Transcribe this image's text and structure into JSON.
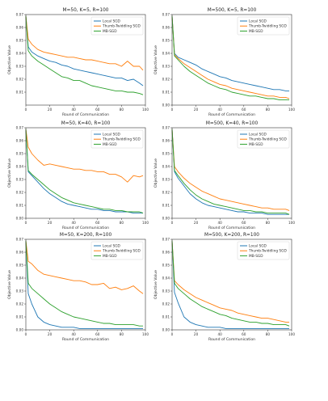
{
  "colors": {
    "Local SGD": "#1f77b4",
    "Thumb-Twiddling SGD": "#ff7f0e",
    "MB-SGD": "#2ca02c"
  },
  "chart_data": [
    {
      "type": "line",
      "title": "M=50, K=5, R=100",
      "xlabel": "Round of Communication",
      "ylabel": "Objective Value",
      "xlim": [
        0,
        100
      ],
      "ylim": [
        0,
        0.07
      ],
      "xticks": [
        "0",
        "20",
        "40",
        "60",
        "80",
        "100"
      ],
      "yticks": [
        "0.01",
        "0.02",
        "0.03",
        "0.04",
        "0.05",
        "0.06",
        "0.07"
      ],
      "legend": "top-right",
      "series": [
        {
          "name": "Local SGD",
          "x": [
            0,
            2,
            5,
            10,
            15,
            20,
            25,
            30,
            35,
            40,
            45,
            50,
            55,
            60,
            65,
            70,
            75,
            80,
            85,
            90,
            95,
            98
          ],
          "values": [
            0.069,
            0.045,
            0.041,
            0.038,
            0.036,
            0.034,
            0.033,
            0.031,
            0.03,
            0.028,
            0.027,
            0.026,
            0.025,
            0.024,
            0.023,
            0.022,
            0.021,
            0.021,
            0.019,
            0.02,
            0.017,
            0.015
          ]
        },
        {
          "name": "Thumb-Twiddling SGD",
          "x": [
            0,
            2,
            5,
            10,
            15,
            20,
            25,
            30,
            35,
            40,
            45,
            50,
            55,
            60,
            65,
            70,
            75,
            80,
            85,
            90,
            95,
            98
          ],
          "values": [
            0.069,
            0.051,
            0.047,
            0.043,
            0.041,
            0.04,
            0.039,
            0.038,
            0.037,
            0.037,
            0.036,
            0.035,
            0.035,
            0.034,
            0.033,
            0.032,
            0.032,
            0.03,
            0.034,
            0.03,
            0.03,
            0.027
          ]
        },
        {
          "name": "MB-SGD",
          "x": [
            0,
            2,
            5,
            10,
            15,
            20,
            25,
            30,
            35,
            40,
            45,
            50,
            55,
            60,
            65,
            70,
            75,
            80,
            85,
            90,
            95,
            98
          ],
          "values": [
            0.069,
            0.042,
            0.038,
            0.034,
            0.031,
            0.028,
            0.025,
            0.022,
            0.021,
            0.019,
            0.019,
            0.017,
            0.015,
            0.014,
            0.013,
            0.012,
            0.011,
            0.011,
            0.01,
            0.01,
            0.009,
            0.008
          ]
        }
      ]
    },
    {
      "type": "line",
      "title": "M=500, K=5, R=100",
      "xlabel": "Round of Communication",
      "ylabel": "Objective Value",
      "xlim": [
        0,
        100
      ],
      "ylim": [
        0,
        0.07
      ],
      "xticks": [
        "0",
        "20",
        "40",
        "60",
        "80",
        "100"
      ],
      "yticks": [
        "0.00",
        "0.01",
        "0.02",
        "0.03",
        "0.04",
        "0.05",
        "0.06",
        "0.07"
      ],
      "legend": "top-right",
      "series": [
        {
          "name": "Local SGD",
          "x": [
            0,
            2,
            5,
            10,
            15,
            20,
            25,
            30,
            35,
            40,
            45,
            50,
            55,
            60,
            65,
            70,
            75,
            80,
            85,
            90,
            95,
            98
          ],
          "values": [
            0.069,
            0.04,
            0.037,
            0.035,
            0.033,
            0.031,
            0.028,
            0.026,
            0.024,
            0.022,
            0.021,
            0.019,
            0.018,
            0.017,
            0.016,
            0.015,
            0.014,
            0.013,
            0.012,
            0.012,
            0.011,
            0.011
          ]
        },
        {
          "name": "Thumb-Twiddling SGD",
          "x": [
            0,
            2,
            5,
            10,
            15,
            20,
            25,
            30,
            35,
            40,
            45,
            50,
            55,
            60,
            65,
            70,
            75,
            80,
            85,
            90,
            95,
            98
          ],
          "values": [
            0.069,
            0.039,
            0.036,
            0.032,
            0.029,
            0.026,
            0.023,
            0.02,
            0.018,
            0.016,
            0.015,
            0.013,
            0.012,
            0.011,
            0.01,
            0.009,
            0.008,
            0.007,
            0.007,
            0.006,
            0.006,
            0.005
          ]
        },
        {
          "name": "MB-SGD",
          "x": [
            0,
            2,
            5,
            10,
            15,
            20,
            25,
            30,
            35,
            40,
            45,
            50,
            55,
            60,
            65,
            70,
            75,
            80,
            85,
            90,
            95,
            98
          ],
          "values": [
            0.069,
            0.038,
            0.035,
            0.03,
            0.026,
            0.023,
            0.02,
            0.017,
            0.015,
            0.013,
            0.012,
            0.01,
            0.009,
            0.008,
            0.007,
            0.007,
            0.006,
            0.005,
            0.005,
            0.004,
            0.004,
            0.004
          ]
        }
      ]
    },
    {
      "type": "line",
      "title": "M=50, K=40, R=100",
      "xlabel": "Round of Communication",
      "ylabel": "Objective Value",
      "xlim": [
        0,
        100
      ],
      "ylim": [
        0,
        0.07
      ],
      "xticks": [
        "0",
        "20",
        "40",
        "60",
        "80",
        "100"
      ],
      "yticks": [
        "0.00",
        "0.01",
        "0.02",
        "0.03",
        "0.04",
        "0.05",
        "0.06",
        "0.07"
      ],
      "legend": "top-right",
      "series": [
        {
          "name": "Local SGD",
          "x": [
            0,
            2,
            5,
            10,
            15,
            20,
            25,
            30,
            35,
            40,
            45,
            50,
            55,
            60,
            65,
            70,
            75,
            80,
            85,
            90,
            95,
            98
          ],
          "values": [
            0.069,
            0.036,
            0.033,
            0.028,
            0.023,
            0.019,
            0.016,
            0.013,
            0.011,
            0.01,
            0.009,
            0.008,
            0.007,
            0.007,
            0.006,
            0.006,
            0.005,
            0.005,
            0.005,
            0.004,
            0.004,
            0.004
          ]
        },
        {
          "name": "Thumb-Twiddling SGD",
          "x": [
            0,
            2,
            5,
            10,
            15,
            20,
            25,
            30,
            35,
            40,
            45,
            50,
            55,
            60,
            65,
            70,
            75,
            80,
            85,
            90,
            95,
            98
          ],
          "values": [
            0.069,
            0.055,
            0.05,
            0.045,
            0.041,
            0.042,
            0.041,
            0.04,
            0.039,
            0.038,
            0.038,
            0.037,
            0.037,
            0.036,
            0.036,
            0.034,
            0.034,
            0.032,
            0.028,
            0.033,
            0.032,
            0.033
          ]
        },
        {
          "name": "MB-SGD",
          "x": [
            0,
            2,
            5,
            10,
            15,
            20,
            25,
            30,
            35,
            40,
            45,
            50,
            55,
            60,
            65,
            70,
            75,
            80,
            85,
            90,
            95,
            98
          ],
          "values": [
            0.069,
            0.037,
            0.034,
            0.03,
            0.026,
            0.022,
            0.019,
            0.016,
            0.014,
            0.012,
            0.011,
            0.01,
            0.009,
            0.008,
            0.007,
            0.007,
            0.006,
            0.006,
            0.005,
            0.005,
            0.005,
            0.004
          ]
        }
      ]
    },
    {
      "type": "line",
      "title": "M=500, K=40, R=100",
      "xlabel": "Round of Communication",
      "ylabel": "Objective Value",
      "xlim": [
        0,
        100
      ],
      "ylim": [
        0,
        0.07
      ],
      "xticks": [
        "0",
        "20",
        "40",
        "60",
        "80",
        "100"
      ],
      "yticks": [
        "0.00",
        "0.01",
        "0.02",
        "0.03",
        "0.04",
        "0.05",
        "0.06",
        "0.07"
      ],
      "legend": "top-right",
      "series": [
        {
          "name": "Local SGD",
          "x": [
            0,
            2,
            5,
            10,
            15,
            20,
            25,
            30,
            35,
            40,
            45,
            50,
            55,
            60,
            65,
            70,
            75,
            80,
            85,
            90,
            95,
            98
          ],
          "values": [
            0.069,
            0.036,
            0.031,
            0.025,
            0.019,
            0.015,
            0.012,
            0.01,
            0.009,
            0.008,
            0.007,
            0.006,
            0.005,
            0.005,
            0.004,
            0.004,
            0.004,
            0.003,
            0.003,
            0.003,
            0.003,
            0.003
          ]
        },
        {
          "name": "Thumb-Twiddling SGD",
          "x": [
            0,
            2,
            5,
            10,
            15,
            20,
            25,
            30,
            35,
            40,
            45,
            50,
            55,
            60,
            65,
            70,
            75,
            80,
            85,
            90,
            95,
            98
          ],
          "values": [
            0.069,
            0.04,
            0.036,
            0.031,
            0.027,
            0.024,
            0.021,
            0.019,
            0.017,
            0.015,
            0.014,
            0.013,
            0.012,
            0.011,
            0.01,
            0.009,
            0.008,
            0.008,
            0.007,
            0.007,
            0.007,
            0.006
          ]
        },
        {
          "name": "MB-SGD",
          "x": [
            0,
            2,
            5,
            10,
            15,
            20,
            25,
            30,
            35,
            40,
            45,
            50,
            55,
            60,
            65,
            70,
            75,
            80,
            85,
            90,
            95,
            98
          ],
          "values": [
            0.069,
            0.037,
            0.033,
            0.027,
            0.022,
            0.018,
            0.015,
            0.013,
            0.011,
            0.01,
            0.009,
            0.008,
            0.007,
            0.006,
            0.006,
            0.005,
            0.005,
            0.004,
            0.004,
            0.004,
            0.004,
            0.003
          ]
        }
      ]
    },
    {
      "type": "line",
      "title": "M=50, K=200, R=100",
      "xlabel": "Round of Communication",
      "ylabel": "Objective Value",
      "xlim": [
        0,
        100
      ],
      "ylim": [
        0,
        0.07
      ],
      "xticks": [
        "0",
        "20",
        "40",
        "60",
        "80",
        "100"
      ],
      "yticks": [
        "0.00",
        "0.01",
        "0.02",
        "0.03",
        "0.04",
        "0.05",
        "0.06",
        "0.07"
      ],
      "legend": "top-right",
      "series": [
        {
          "name": "Local SGD",
          "x": [
            0,
            2,
            5,
            10,
            15,
            20,
            25,
            30,
            35,
            40,
            45,
            50,
            55,
            60,
            65,
            70,
            75,
            80,
            85,
            90,
            95,
            98
          ],
          "values": [
            0.069,
            0.028,
            0.02,
            0.01,
            0.006,
            0.004,
            0.003,
            0.002,
            0.002,
            0.002,
            0.001,
            0.001,
            0.001,
            0.001,
            0.001,
            0.001,
            0.001,
            0.001,
            0.001,
            0.001,
            0.001,
            0.001
          ]
        },
        {
          "name": "Thumb-Twiddling SGD",
          "x": [
            0,
            2,
            5,
            10,
            15,
            20,
            25,
            30,
            35,
            40,
            45,
            50,
            55,
            60,
            65,
            70,
            75,
            80,
            85,
            90,
            95,
            98
          ],
          "values": [
            0.069,
            0.053,
            0.051,
            0.046,
            0.043,
            0.042,
            0.041,
            0.04,
            0.039,
            0.038,
            0.038,
            0.037,
            0.035,
            0.035,
            0.036,
            0.032,
            0.033,
            0.031,
            0.032,
            0.034,
            0.03,
            0.028
          ]
        },
        {
          "name": "MB-SGD",
          "x": [
            0,
            2,
            5,
            10,
            15,
            20,
            25,
            30,
            35,
            40,
            45,
            50,
            55,
            60,
            65,
            70,
            75,
            80,
            85,
            90,
            95,
            98
          ],
          "values": [
            0.069,
            0.036,
            0.032,
            0.028,
            0.024,
            0.02,
            0.017,
            0.014,
            0.012,
            0.01,
            0.009,
            0.008,
            0.007,
            0.006,
            0.005,
            0.005,
            0.004,
            0.004,
            0.004,
            0.004,
            0.003,
            0.003
          ]
        }
      ]
    },
    {
      "type": "line",
      "title": "M=500, K=200, R=100",
      "xlabel": "Round of Communication",
      "ylabel": "Objective Value",
      "xlim": [
        0,
        100
      ],
      "ylim": [
        0,
        0.07
      ],
      "xticks": [
        "0",
        "20",
        "40",
        "60",
        "80",
        "100"
      ],
      "yticks": [
        "0.00",
        "0.01",
        "0.02",
        "0.03",
        "0.04",
        "0.05",
        "0.06",
        "0.07"
      ],
      "legend": "top-right",
      "series": [
        {
          "name": "Local SGD",
          "x": [
            0,
            2,
            5,
            10,
            15,
            20,
            25,
            30,
            35,
            40,
            45,
            50,
            55,
            60,
            65,
            70,
            75,
            80,
            85,
            90,
            95,
            98
          ],
          "values": [
            0.069,
            0.029,
            0.021,
            0.01,
            0.006,
            0.004,
            0.003,
            0.002,
            0.002,
            0.002,
            0.001,
            0.001,
            0.001,
            0.001,
            0.001,
            0.001,
            0.001,
            0.001,
            0.001,
            0.001,
            0.001,
            0.001
          ]
        },
        {
          "name": "Thumb-Twiddling SGD",
          "x": [
            0,
            2,
            5,
            10,
            15,
            20,
            25,
            30,
            35,
            40,
            45,
            50,
            55,
            60,
            65,
            70,
            75,
            80,
            85,
            90,
            95,
            98
          ],
          "values": [
            0.069,
            0.038,
            0.035,
            0.031,
            0.028,
            0.025,
            0.023,
            0.021,
            0.019,
            0.017,
            0.016,
            0.015,
            0.013,
            0.012,
            0.011,
            0.01,
            0.009,
            0.009,
            0.008,
            0.007,
            0.006,
            0.006
          ]
        },
        {
          "name": "MB-SGD",
          "x": [
            0,
            2,
            5,
            10,
            15,
            20,
            25,
            30,
            35,
            40,
            45,
            50,
            55,
            60,
            65,
            70,
            75,
            80,
            85,
            90,
            95,
            98
          ],
          "values": [
            0.069,
            0.036,
            0.032,
            0.028,
            0.024,
            0.021,
            0.018,
            0.016,
            0.014,
            0.012,
            0.011,
            0.009,
            0.008,
            0.007,
            0.006,
            0.006,
            0.005,
            0.005,
            0.004,
            0.004,
            0.004,
            0.003
          ]
        }
      ]
    }
  ]
}
